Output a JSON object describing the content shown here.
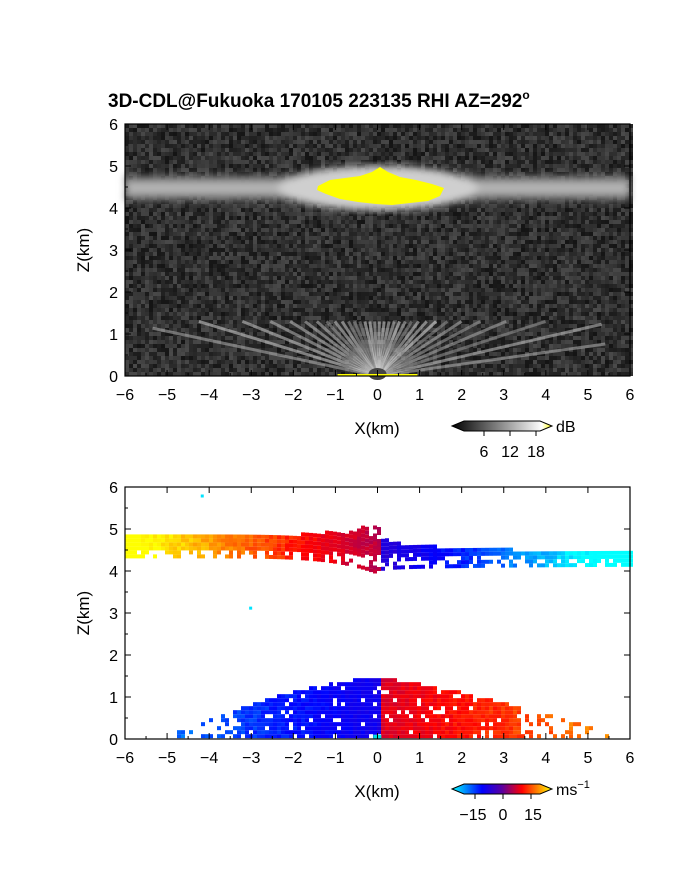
{
  "title": "3D-CDL@Fukuoka 170105 223135 RHI AZ=292",
  "title_degree": "o",
  "chart_data": [
    {
      "type": "heatmap",
      "name": "intensity",
      "xlabel": "X(km)",
      "ylabel": "Z(km)",
      "xlim": [
        -6,
        6
      ],
      "ylim": [
        0,
        6
      ],
      "xticks": [
        "-6",
        "-5",
        "-4",
        "-3",
        "-2",
        "-1",
        "0",
        "1",
        "2",
        "3",
        "4",
        "5",
        "6"
      ],
      "yticks": [
        "0",
        "1",
        "2",
        "3",
        "4",
        "5",
        "6"
      ],
      "colorbar": {
        "unit": "dB",
        "ticks": [
          "6",
          "12",
          "18"
        ],
        "range": [
          0,
          20
        ],
        "colors": [
          "#000000",
          "#ffffff",
          "#ffff00"
        ]
      },
      "layer_center_km": 4.4,
      "saturated_patch": {
        "x_range": [
          -1.4,
          1.5
        ],
        "z_range": [
          4.1,
          4.8
        ],
        "color": "#ffff00"
      },
      "near_ground_fan_top_km": 1.3
    },
    {
      "type": "heatmap",
      "name": "velocity",
      "xlabel": "X(km)",
      "ylabel": "Z(km)",
      "xlim": [
        -6,
        6
      ],
      "ylim": [
        0,
        6
      ],
      "xticks": [
        "-6",
        "-5",
        "-4",
        "-3",
        "-2",
        "-1",
        "0",
        "1",
        "2",
        "3",
        "4",
        "5",
        "6"
      ],
      "yticks": [
        "0",
        "1",
        "2",
        "3",
        "4",
        "5",
        "6"
      ],
      "colorbar": {
        "unit": "ms",
        "unit_exp": "−1",
        "ticks": [
          "−15",
          "0",
          "15"
        ],
        "range": [
          -18,
          18
        ],
        "colors": [
          "#00ffff",
          "#0000ff",
          "#ff0000",
          "#ffff00"
        ]
      },
      "upper_layer": {
        "x_range": [
          -6,
          6
        ],
        "z_left": [
          4.3,
          4.8
        ],
        "z_center": [
          3.9,
          5.1
        ],
        "z_right": [
          4.1,
          4.4
        ],
        "v_left_edge": 16,
        "v_right_edge": -16
      },
      "lower_layer": {
        "x_range": [
          -4.8,
          5.5
        ],
        "z_top_center": 1.3,
        "v_left_edge": -13,
        "v_right_edge": 14
      }
    }
  ]
}
